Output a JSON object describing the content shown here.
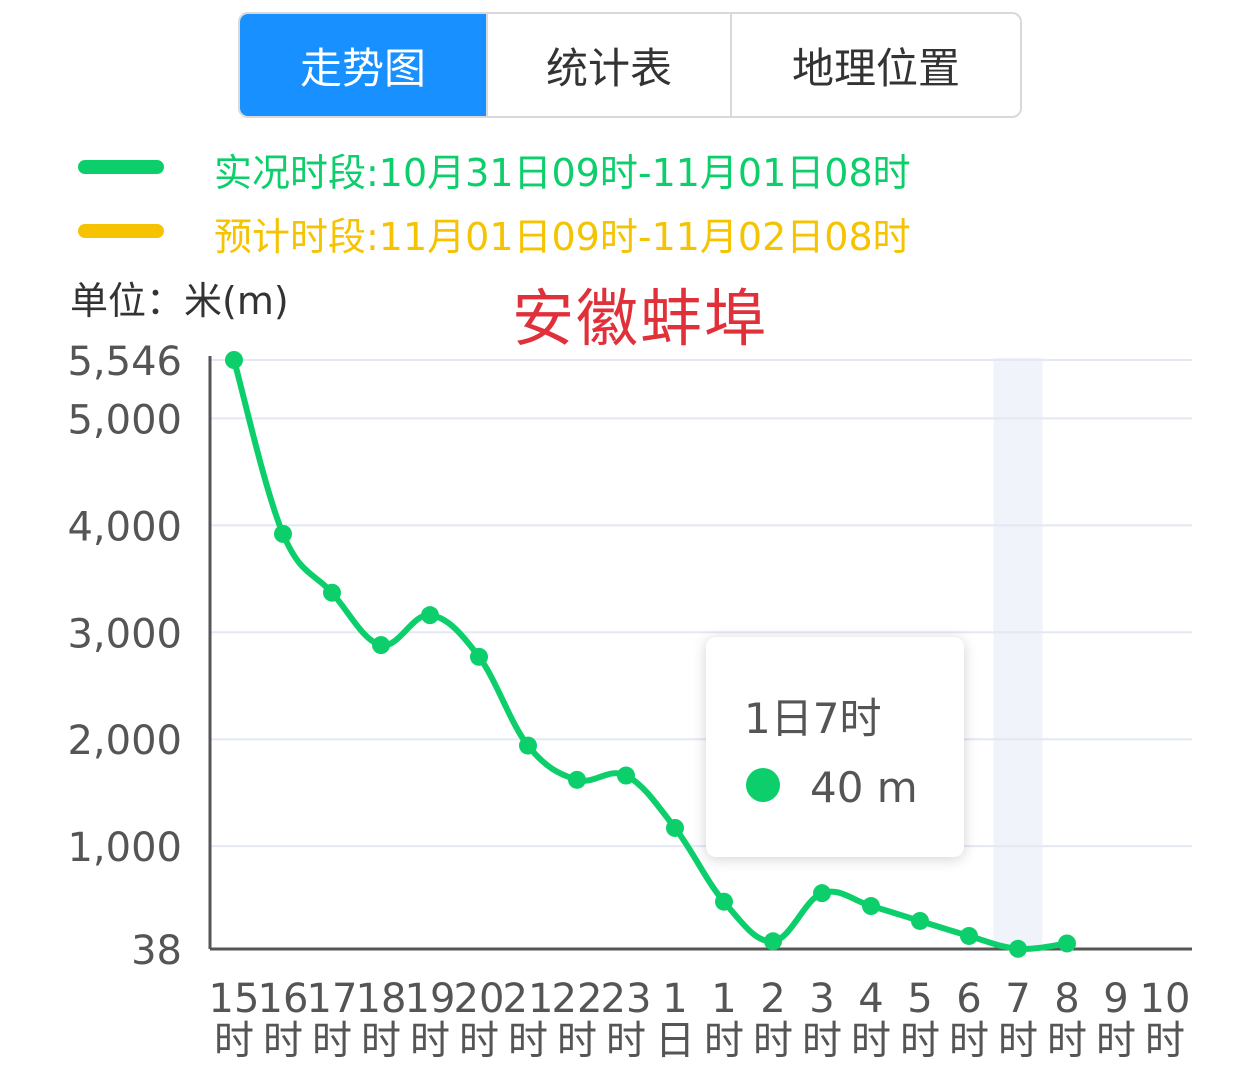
{
  "tabs": [
    {
      "label": "走势图",
      "active": true
    },
    {
      "label": "统计表",
      "active": false
    },
    {
      "label": "地理位置",
      "active": false
    }
  ],
  "legend": [
    {
      "text": "实况时段:10月31日09时-11月01日08时",
      "color": "#0ccf6b"
    },
    {
      "text": "预计时段:11月01日09时-11月02日08时",
      "color": "#f5c300"
    }
  ],
  "unit_label": "单位：米(m)",
  "place_label": "安徽蚌埠",
  "colors": {
    "line": "#0ccf6b",
    "grid": "#e3e8f3",
    "axis": "#555555",
    "highlight_band": "#f1f3fa",
    "tick_text": "#555555"
  },
  "tooltip": {
    "title": "1日7时",
    "value": "40 m"
  },
  "chart_data": {
    "type": "line",
    "ylabel": "单位：米(m)",
    "ylim": [
      38,
      5546
    ],
    "y_ticks": [
      {
        "label": "38",
        "value": 38
      },
      {
        "label": "1,000",
        "value": 1000
      },
      {
        "label": "2,000",
        "value": 2000
      },
      {
        "label": "3,000",
        "value": 3000
      },
      {
        "label": "4,000",
        "value": 4000
      },
      {
        "label": "5,000",
        "value": 5000
      },
      {
        "label": "5,546",
        "value": 5546
      }
    ],
    "categories": [
      [
        "15",
        "时"
      ],
      [
        "16",
        "时"
      ],
      [
        "17",
        "时"
      ],
      [
        "18",
        "时"
      ],
      [
        "19",
        "时"
      ],
      [
        "20",
        "时"
      ],
      [
        "21",
        "时"
      ],
      [
        "22",
        "时"
      ],
      [
        "23",
        "时"
      ],
      [
        "1",
        "日"
      ],
      [
        "1",
        "时"
      ],
      [
        "2",
        "时"
      ],
      [
        "3",
        "时"
      ],
      [
        "4",
        "时"
      ],
      [
        "5",
        "时"
      ],
      [
        "6",
        "时"
      ],
      [
        "7",
        "时"
      ],
      [
        "8",
        "时"
      ],
      [
        "9",
        "时"
      ],
      [
        "10",
        "时"
      ]
    ],
    "highlight_category": 16,
    "series": [
      {
        "values": [
          5546,
          3920,
          3370,
          2880,
          3160,
          2770,
          1940,
          1620,
          1660,
          1170,
          480,
          110,
          560,
          440,
          300,
          160,
          40,
          90,
          null,
          null
        ]
      }
    ]
  }
}
